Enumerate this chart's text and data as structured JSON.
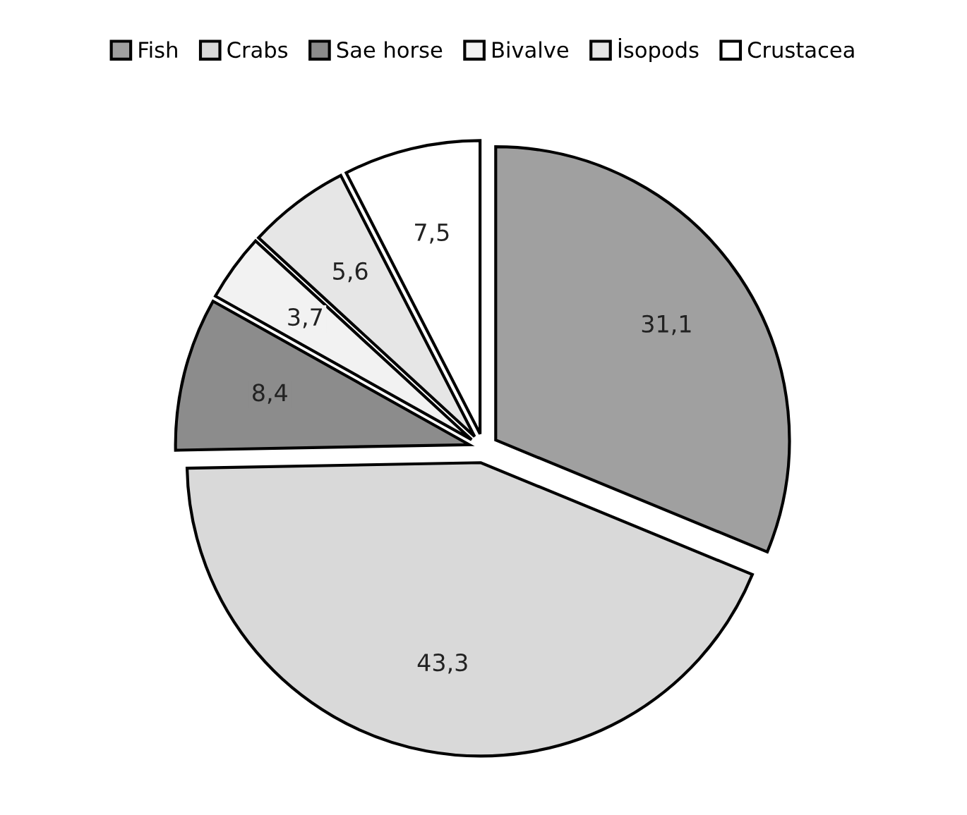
{
  "chart_data": {
    "type": "pie",
    "categories": [
      "Fish",
      "Crabs",
      "Sae horse",
      "Bivalve",
      "İsopods",
      "Crustacea"
    ],
    "values": [
      31.1,
      43.3,
      8.4,
      3.7,
      5.6,
      7.5
    ],
    "value_labels": [
      "31,1",
      "43,3",
      "8,4",
      "3,7",
      "5,6",
      "7,5"
    ],
    "colors": [
      "#a0a0a0",
      "#d9d9d9",
      "#8c8c8c",
      "#f2f2f2",
      "#e6e6e6",
      "#ffffff"
    ],
    "legend": "top"
  }
}
